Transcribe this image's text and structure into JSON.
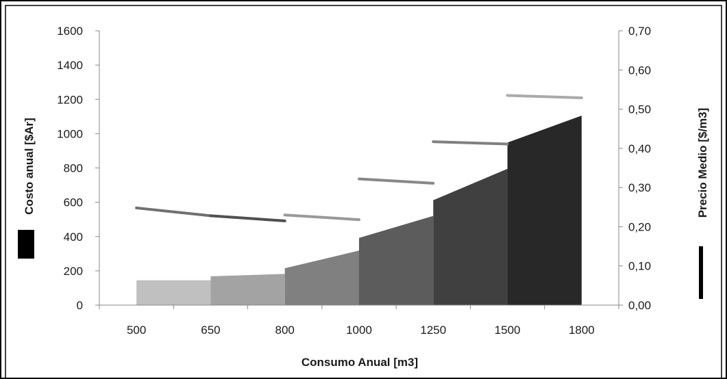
{
  "chart_data": {
    "type": "area",
    "title": "",
    "xlabel": "Consumo Anual [m3]",
    "ylabel_left": "Costo anual [$Ar]",
    "ylabel_right": "Precio Medio [$/m3]",
    "categories": [
      "500",
      "650",
      "800",
      "1000",
      "1250",
      "1500",
      "1800"
    ],
    "ylim_left": [
      0,
      1600
    ],
    "yticks_left": [
      "0",
      "200",
      "400",
      "600",
      "800",
      "1000",
      "1200",
      "1400",
      "1600"
    ],
    "ylim_right": [
      0,
      0.7
    ],
    "yticks_right": [
      "0,00",
      "0,10",
      "0,20",
      "0,30",
      "0,40",
      "0,50",
      "0,60",
      "0,70"
    ],
    "grid": false,
    "cost_segments": [
      {
        "x0": 500,
        "x1": 650,
        "cost_start": 145,
        "cost_end": 145,
        "color": "#c0c0c0"
      },
      {
        "x0": 650,
        "x1": 800,
        "cost_start": 168,
        "cost_end": 182,
        "color": "#a3a3a3"
      },
      {
        "x0": 800,
        "x1": 1000,
        "cost_start": 215,
        "cost_end": 318,
        "color": "#808080"
      },
      {
        "x0": 1000,
        "x1": 1250,
        "cost_start": 392,
        "cost_end": 520,
        "color": "#5c5c5c"
      },
      {
        "x0": 1250,
        "x1": 1500,
        "cost_start": 612,
        "cost_end": 795,
        "color": "#404040"
      },
      {
        "x0": 1500,
        "x1": 1800,
        "cost_start": 948,
        "cost_end": 1105,
        "color": "#282828"
      }
    ],
    "price_segments": [
      {
        "x0": 500,
        "x1": 650,
        "price_start": 0.248,
        "price_end": 0.228,
        "color": "#707070"
      },
      {
        "x0": 650,
        "x1": 800,
        "price_start": 0.228,
        "price_end": 0.215,
        "color": "#505050"
      },
      {
        "x0": 800,
        "x1": 1000,
        "price_start": 0.23,
        "price_end": 0.218,
        "color": "#999999"
      },
      {
        "x0": 1000,
        "x1": 1250,
        "price_start": 0.322,
        "price_end": 0.311,
        "color": "#888888"
      },
      {
        "x0": 1250,
        "x1": 1500,
        "price_start": 0.417,
        "price_end": 0.411,
        "color": "#808080"
      },
      {
        "x0": 1500,
        "x1": 1800,
        "price_start": 0.535,
        "price_end": 0.529,
        "color": "#aaaaaa"
      }
    ],
    "legend_left_color": "#000000",
    "legend_right_color": "#000000"
  }
}
